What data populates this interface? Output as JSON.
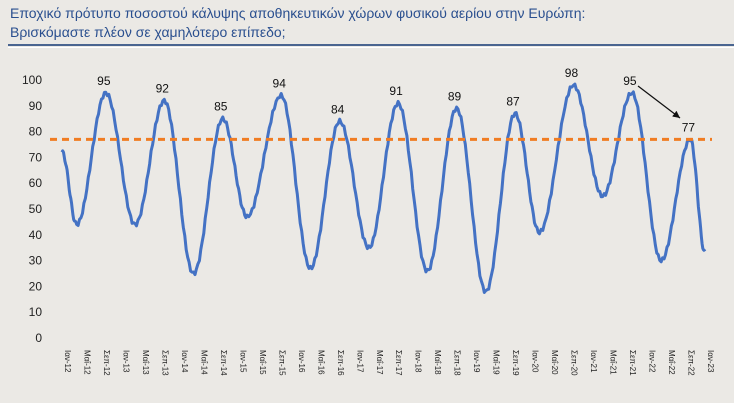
{
  "header": {
    "title_line1": "Εποχικό πρότυπο ποσοστού κάλυψης αποθηκευτικών χώρων φυσικού αερίου στην Ευρώπη:",
    "title_line2": "Βρισκόμαστε πλέον σε χαμηλότερο επίπεδο;"
  },
  "chart_data": {
    "type": "line",
    "title": "",
    "xlabel": "",
    "ylabel": "",
    "ylim": [
      0,
      100
    ],
    "yticks": [
      0,
      10,
      20,
      30,
      40,
      50,
      60,
      70,
      80,
      90,
      100
    ],
    "grid": false,
    "xticks": [
      "Ιαν-12",
      "Μαΐ-12",
      "Σεπ-12",
      "Ιαν-13",
      "Μαΐ-13",
      "Σεπ-13",
      "Ιαν-14",
      "Μαΐ-14",
      "Σεπ-14",
      "Ιαν-15",
      "Μαΐ-15",
      "Σεπ-15",
      "Ιαν-16",
      "Μαΐ-16",
      "Σεπ-16",
      "Ιαν-17",
      "Μαΐ-17",
      "Σεπ-17",
      "Ιαν-18",
      "Μαΐ-18",
      "Σεπ-18",
      "Ιαν-19",
      "Μαΐ-19",
      "Σεπ-19",
      "Ιαν-20",
      "Μαΐ-20",
      "Σεπ-20",
      "Ιαν-21",
      "Μαΐ-21",
      "Σεπ-21",
      "Ιαν-22",
      "Μαΐ-22",
      "Σεπ-22",
      "Ιαν-23"
    ],
    "series": [
      {
        "color": "#4472c4",
        "points": [
          [
            "2012-01",
            72
          ],
          [
            "2012-04",
            44
          ],
          [
            "2012-10",
            95
          ],
          [
            "2013-04",
            44
          ],
          [
            "2013-10",
            92
          ],
          [
            "2014-04",
            25
          ],
          [
            "2014-10",
            85
          ],
          [
            "2015-03",
            47
          ],
          [
            "2015-10",
            94
          ],
          [
            "2016-04",
            27
          ],
          [
            "2016-10",
            84
          ],
          [
            "2017-04",
            35
          ],
          [
            "2017-10",
            91
          ],
          [
            "2018-04",
            26
          ],
          [
            "2018-10",
            89
          ],
          [
            "2019-04",
            18
          ],
          [
            "2019-10",
            87
          ],
          [
            "2020-03",
            41
          ],
          [
            "2020-10",
            98
          ],
          [
            "2021-04",
            55
          ],
          [
            "2021-10",
            95
          ],
          [
            "2022-04",
            30
          ],
          [
            "2022-10",
            77
          ],
          [
            "2023-01",
            33
          ]
        ]
      }
    ],
    "reference_line": {
      "value": 77,
      "color": "#f07c22",
      "style": "dashed"
    },
    "data_labels": [
      "95",
      "92",
      "85",
      "94",
      "84",
      "91",
      "89",
      "87",
      "98",
      "95",
      "77"
    ],
    "annotation": "arrow pointing to 77"
  }
}
